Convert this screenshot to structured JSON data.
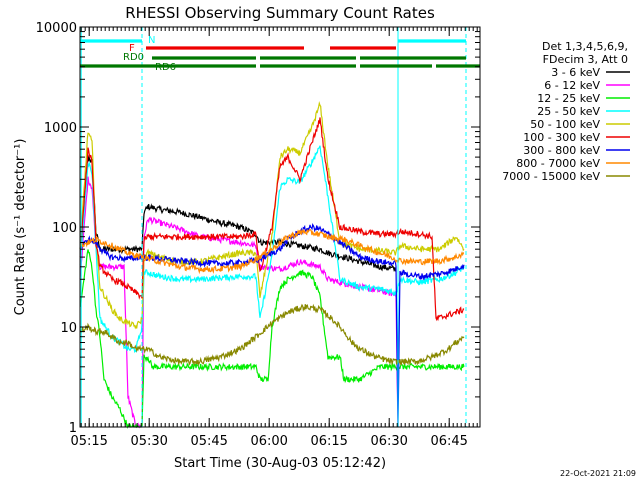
{
  "chart_data": {
    "type": "line",
    "title": "RHESSI Observing Summary Count Rates",
    "xlabel": "Start Time (30-Aug-03 05:12:42)",
    "ylabel": "Count Rate (s⁻¹ detector⁻¹)",
    "yscale": "log",
    "ylim": [
      1,
      10000
    ],
    "xlim_minutes": [
      0,
      100
    ],
    "x_ticks": [
      {
        "label": "05:15",
        "minute": 2.3
      },
      {
        "label": "05:30",
        "minute": 17.3
      },
      {
        "label": "05:45",
        "minute": 32.3
      },
      {
        "label": "06:00",
        "minute": 47.3
      },
      {
        "label": "06:15",
        "minute": 62.3
      },
      {
        "label": "06:30",
        "minute": 77.3
      },
      {
        "label": "06:45",
        "minute": 92.3
      }
    ],
    "y_ticks": [
      {
        "label": "1",
        "value": 1
      },
      {
        "label": "10",
        "value": 10
      },
      {
        "label": "100",
        "value": 100
      },
      {
        "label": "1000",
        "value": 1000
      },
      {
        "label": "10000",
        "value": 10000
      }
    ],
    "legend_title": [
      "Det 1,3,4,5,6,9,",
      "FDecim 3, Att 0"
    ],
    "legend_placement": "right",
    "timestamp": "22-Oct-2021 21:09",
    "flags": [
      {
        "name": "N",
        "color": "#00ffff",
        "label": "N",
        "segments": [
          [
            0,
            15.5
          ],
          [
            79.5,
            96.5
          ]
        ]
      },
      {
        "name": "F",
        "color": "#ee0000",
        "label": "F",
        "segments": [
          [
            16.5,
            56
          ],
          [
            62.5,
            79
          ]
        ]
      },
      {
        "name": "RD0",
        "color": "#007700",
        "label": "RD0",
        "segments": [
          [
            18,
            44
          ],
          [
            45,
            69
          ],
          [
            70,
            96.5
          ]
        ]
      },
      {
        "name": "RD6",
        "color": "#007700",
        "label": "RD6",
        "segments": [
          [
            0,
            44
          ],
          [
            45,
            69
          ],
          [
            70,
            88
          ],
          [
            89,
            100
          ]
        ]
      }
    ],
    "vlines": [
      {
        "minute": 0.3,
        "style": "solid"
      },
      {
        "minute": 15.5,
        "style": "dashed"
      },
      {
        "minute": 79.5,
        "style": "solid"
      },
      {
        "minute": 96.5,
        "style": "dashed"
      }
    ],
    "series": [
      {
        "name": "3 - 6 keV",
        "color": "#000000",
        "x": [
          0,
          2,
          3,
          4,
          5,
          15.5,
          16,
          17,
          20,
          25,
          30,
          35,
          40,
          44,
          45,
          50,
          55,
          60,
          62,
          66,
          70,
          75,
          79
        ],
        "y": [
          60,
          500,
          450,
          90,
          60,
          60,
          140,
          160,
          150,
          140,
          125,
          110,
          100,
          85,
          70,
          70,
          65,
          60,
          55,
          50,
          45,
          40,
          38
        ]
      },
      {
        "name": "6 - 12 keV",
        "color": "#ff00ff",
        "x": [
          0,
          2,
          3,
          4,
          5,
          11,
          12,
          14,
          15.5,
          16,
          17,
          20,
          25,
          30,
          35,
          40,
          44,
          45,
          50,
          55,
          60,
          62,
          65,
          70,
          75,
          79,
          79.5
        ],
        "y": [
          30,
          300,
          250,
          60,
          40,
          40,
          2,
          1,
          1,
          80,
          120,
          110,
          95,
          80,
          75,
          70,
          65,
          40,
          38,
          45,
          40,
          30,
          28,
          25,
          23,
          21,
          1
        ]
      },
      {
        "name": "12 - 25 keV",
        "color": "#00ee00",
        "x": [
          0,
          2,
          3,
          4,
          5,
          6,
          8,
          10,
          12,
          13,
          14,
          15.5,
          16,
          17,
          18,
          25,
          30,
          35,
          40,
          44,
          45,
          47,
          48,
          50,
          52,
          55,
          58,
          60,
          62,
          65,
          66,
          67,
          68,
          70,
          75,
          79,
          80,
          85,
          90,
          94,
          96
        ],
        "y": [
          15,
          60,
          40,
          15,
          8,
          3,
          2,
          1.5,
          1,
          1,
          1,
          1,
          5,
          5,
          4,
          4,
          4,
          4,
          4,
          4,
          3,
          3,
          10,
          25,
          30,
          35,
          32,
          20,
          5,
          5,
          3,
          3,
          3,
          3,
          4,
          4,
          4,
          4,
          4,
          4,
          4
        ]
      },
      {
        "name": "25 - 50 keV",
        "color": "#00ffff",
        "x": [
          0,
          2,
          3,
          4,
          5,
          8,
          10,
          12,
          14,
          15.5,
          16,
          17,
          20,
          25,
          30,
          35,
          40,
          44,
          45,
          48,
          50,
          52,
          55,
          58,
          60,
          62,
          65,
          70,
          75,
          79,
          80,
          85,
          90,
          94,
          96
        ],
        "y": [
          40,
          450,
          350,
          60,
          12,
          8,
          7,
          6,
          6,
          10,
          35,
          35,
          32,
          30,
          30,
          31,
          32,
          32,
          12,
          50,
          250,
          300,
          280,
          450,
          650,
          200,
          30,
          25,
          24,
          22,
          30,
          28,
          30,
          35,
          40
        ]
      },
      {
        "name": "50 - 100 keV",
        "color": "#cccc00",
        "x": [
          0,
          2,
          3,
          4,
          5,
          8,
          10,
          12,
          14,
          15.5,
          16,
          17,
          20,
          25,
          30,
          35,
          40,
          44,
          45,
          48,
          50,
          52,
          55,
          58,
          60,
          62,
          65,
          70,
          75,
          79,
          80,
          85,
          90,
          94,
          96
        ],
        "y": [
          60,
          900,
          700,
          80,
          25,
          15,
          12,
          11,
          10,
          12,
          50,
          55,
          50,
          45,
          45,
          50,
          55,
          55,
          20,
          80,
          500,
          600,
          550,
          1000,
          1700,
          400,
          70,
          60,
          58,
          55,
          65,
          60,
          60,
          80,
          60
        ]
      },
      {
        "name": "100 - 300 keV",
        "color": "#ee0000",
        "x": [
          0,
          2,
          3,
          4,
          5,
          8,
          10,
          12,
          14,
          15.5,
          16,
          17,
          20,
          25,
          30,
          35,
          40,
          44,
          45,
          48,
          50,
          52,
          55,
          58,
          60,
          62,
          65,
          70,
          75,
          79,
          80,
          85,
          88,
          89,
          94,
          96
        ],
        "y": [
          50,
          600,
          450,
          70,
          40,
          30,
          28,
          25,
          22,
          20,
          75,
          80,
          80,
          80,
          80,
          80,
          80,
          85,
          35,
          100,
          400,
          500,
          300,
          700,
          1200,
          300,
          100,
          90,
          85,
          85,
          90,
          85,
          80,
          12,
          14,
          15
        ]
      },
      {
        "name": "300 - 800 keV",
        "color": "#0000ee",
        "x": [
          0,
          2,
          4,
          6,
          8,
          12,
          15.5,
          20,
          25,
          30,
          35,
          40,
          44,
          45,
          48,
          50,
          52,
          55,
          58,
          60,
          62,
          65,
          70,
          75,
          79,
          79.5,
          80,
          85,
          90,
          94,
          96
        ],
        "y": [
          60,
          75,
          70,
          55,
          50,
          48,
          50,
          48,
          46,
          44,
          43,
          44,
          46,
          48,
          55,
          60,
          75,
          90,
          100,
          95,
          85,
          70,
          50,
          45,
          43,
          1,
          35,
          32,
          34,
          38,
          42
        ]
      },
      {
        "name": "800 - 7000 keV",
        "color": "#ff8800",
        "x": [
          0,
          2,
          4,
          6,
          8,
          12,
          15.5,
          20,
          25,
          30,
          35,
          40,
          44,
          48,
          52,
          56,
          60,
          62,
          66,
          70,
          75,
          79,
          80,
          85,
          90,
          94,
          96
        ],
        "y": [
          65,
          70,
          75,
          70,
          65,
          55,
          50,
          45,
          40,
          38,
          38,
          40,
          48,
          60,
          80,
          90,
          85,
          80,
          75,
          65,
          55,
          48,
          46,
          45,
          46,
          50,
          55
        ]
      },
      {
        "name": "7000 - 15000 keV",
        "color": "#888800",
        "x": [
          0,
          2,
          4,
          6,
          8,
          10,
          12,
          14,
          15.5,
          17,
          20,
          25,
          30,
          35,
          40,
          44,
          48,
          52,
          56,
          60,
          62,
          64,
          66,
          68,
          70,
          74,
          78,
          80,
          84,
          88,
          92,
          94,
          96
        ],
        "y": [
          9,
          10,
          9,
          9,
          8,
          7,
          7,
          6,
          6,
          6,
          5,
          4.5,
          4.5,
          5,
          6,
          8,
          11,
          14,
          16,
          15,
          13,
          11,
          9,
          7,
          6,
          5,
          4.5,
          4.5,
          4.5,
          5,
          6,
          7,
          8
        ]
      }
    ]
  }
}
